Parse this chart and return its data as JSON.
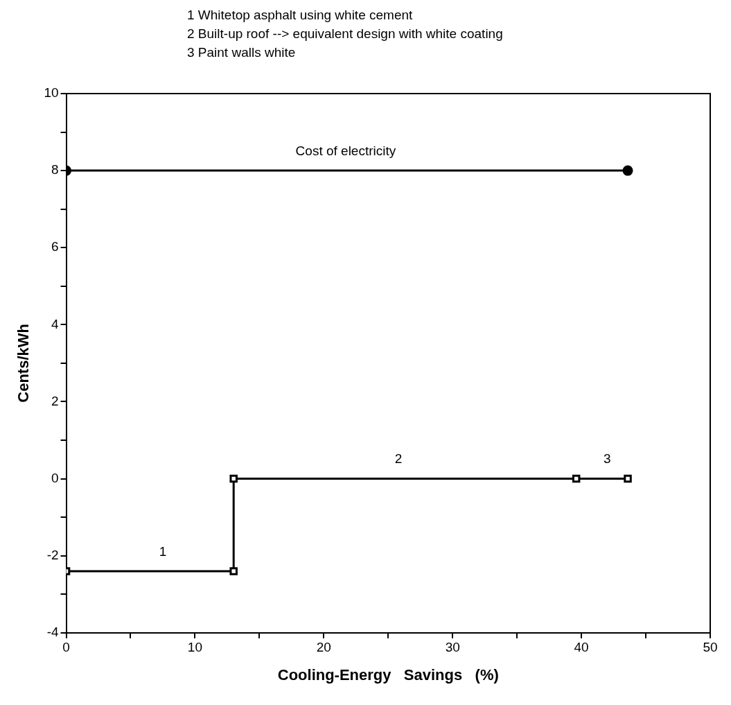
{
  "chart_data": {
    "type": "line",
    "xlabel": "Cooling-Energy   Savings   (%)",
    "ylabel": "Cents/kWh",
    "series": [
      {
        "color": "#000000",
        "marker": "square",
        "x": [
          0,
          13,
          13,
          39.6,
          43.6
        ],
        "values": [
          -2.4,
          -2.4,
          0,
          0,
          0
        ]
      },
      {
        "color": "#000000",
        "marker": "circle",
        "x": [
          0,
          43.6
        ],
        "values": [
          8,
          8
        ]
      }
    ],
    "xlim": [
      0,
      50
    ],
    "ylim": [
      -4,
      10
    ],
    "xticks": [
      0,
      {
        "value": 5,
        "label": null
      },
      10,
      {
        "value": 15,
        "label": null
      },
      20,
      {
        "value": 25,
        "label": null
      },
      30,
      {
        "value": 35,
        "label": null
      },
      40,
      {
        "value": 45,
        "label": null
      },
      50
    ],
    "yticks": [
      -4,
      {
        "value": -3,
        "label": null
      },
      -2,
      {
        "value": -1,
        "label": null
      },
      0,
      {
        "value": 1,
        "label": null
      },
      2,
      {
        "value": 3,
        "label": null
      },
      4,
      {
        "value": 5,
        "label": null
      },
      6,
      {
        "value": 7,
        "label": null
      },
      8,
      {
        "value": 9,
        "label": null
      },
      10
    ],
    "grid": false,
    "legend": false,
    "annotations": [
      "1 Whitetop asphalt using white cement",
      "2 Built-up roof --> equivalent design with white coating",
      "3 Paint walls white",
      {
        "text": "Cost of electricity",
        "x": 21.7,
        "y": 8
      },
      {
        "text": "1",
        "x": 7.5,
        "y": -2.4
      },
      {
        "text": "2",
        "x": 25.8,
        "y": 0
      },
      {
        "text": "3",
        "x": 42,
        "y": 0
      }
    ]
  }
}
